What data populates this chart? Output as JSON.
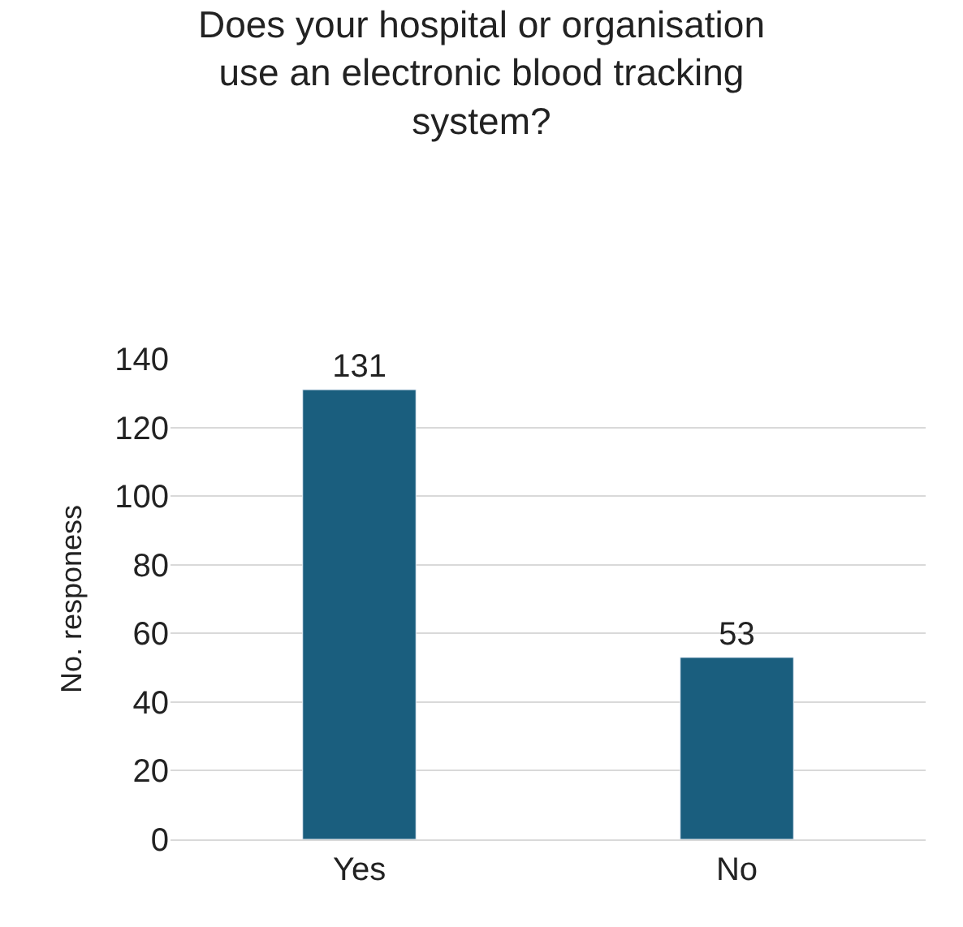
{
  "chart_data": {
    "type": "bar",
    "title": "Does your hospital or organisation use an electronic blood tracking system?",
    "ylabel": "No. responess",
    "categories": [
      "Yes",
      "No"
    ],
    "values": [
      131,
      53
    ],
    "color": "#1a5e7e",
    "ylim": [
      0,
      140
    ],
    "yticks": [
      0,
      20,
      40,
      60,
      80,
      100,
      120,
      140
    ],
    "grid": "y",
    "data_labels": true,
    "legend": false
  }
}
